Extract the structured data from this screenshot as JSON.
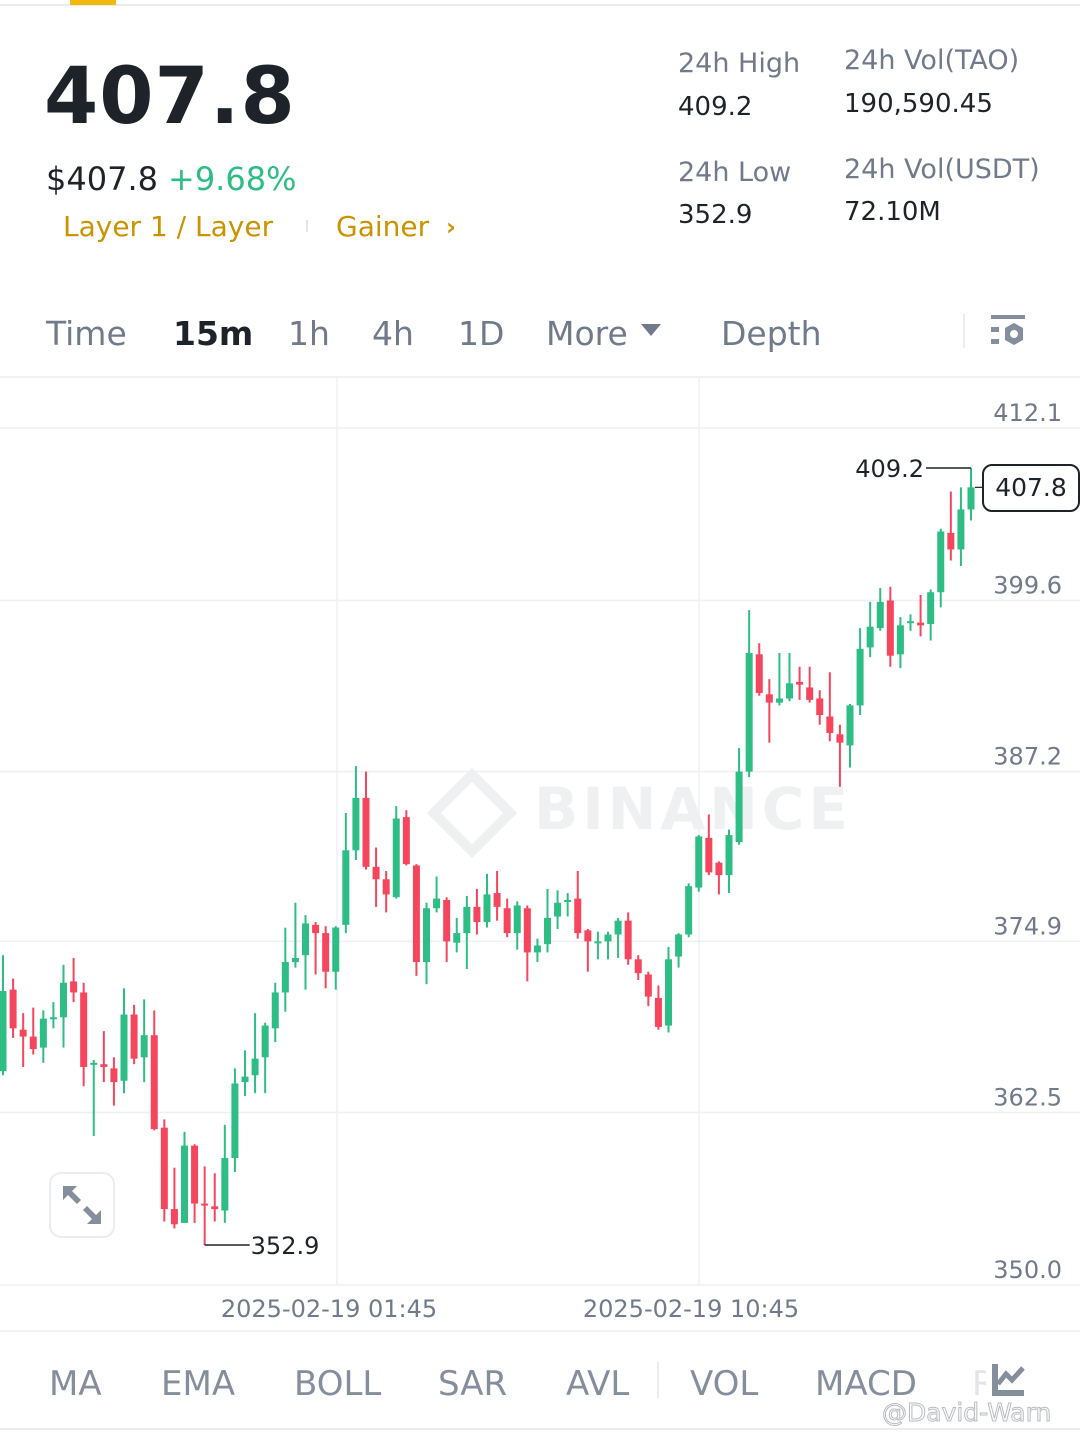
{
  "header": {
    "last_price": "407.8",
    "usd_price": "$407.8",
    "change_pct": "+9.68%",
    "tags": [
      "Layer 1 / Layer",
      "Gainer"
    ],
    "stats": [
      {
        "label": "24h High",
        "value": "409.2"
      },
      {
        "label": "24h Vol(TAO)",
        "value": "190,590.45"
      },
      {
        "label": "24h Low",
        "value": "352.9"
      },
      {
        "label": "24h Vol(USDT)",
        "value": "72.10M"
      }
    ]
  },
  "tabs": {
    "items": [
      "Time",
      "15m",
      "1h",
      "4h",
      "1D",
      "More",
      "Depth"
    ],
    "active": "15m"
  },
  "indicators": [
    "MA",
    "EMA",
    "BOLL",
    "SAR",
    "AVL",
    "VOL",
    "MACD",
    "RSI"
  ],
  "watermark": "BINANCE",
  "credit": "@David-Warn",
  "colors": {
    "up": "#2ebd85",
    "down": "#f6465d",
    "accent": "#c99400",
    "brand": "#f0b90b"
  },
  "chart_data": {
    "type": "candlestick",
    "interval": "15m",
    "ylim": [
      350.0,
      412.1
    ],
    "y_ticks": [
      "412.1",
      "399.6",
      "387.2",
      "374.9",
      "362.5",
      "350.0"
    ],
    "x_ticks": [
      "2025-02-19 01:45",
      "2025-02-19 10:45"
    ],
    "high_marker": "409.2",
    "low_marker": "352.9",
    "last_price_label": "407.8",
    "grid": true,
    "candles": [
      [
        365.5,
        373.9,
        365.2,
        371.3
      ],
      [
        371.4,
        372.2,
        367.9,
        368.6
      ],
      [
        368.5,
        369.7,
        365.8,
        368.0
      ],
      [
        368.0,
        370.1,
        366.7,
        367.1
      ],
      [
        367.2,
        369.9,
        366.1,
        369.3
      ],
      [
        369.3,
        370.5,
        368.6,
        369.4
      ],
      [
        369.4,
        373.2,
        367.2,
        371.9
      ],
      [
        372.0,
        373.7,
        370.5,
        371.2
      ],
      [
        371.2,
        371.9,
        364.4,
        365.8
      ],
      [
        366.0,
        366.3,
        360.8,
        366.1
      ],
      [
        366.0,
        368.4,
        364.7,
        365.8
      ],
      [
        365.7,
        366.5,
        363.0,
        364.7
      ],
      [
        364.8,
        371.5,
        363.9,
        369.6
      ],
      [
        369.6,
        370.3,
        366.0,
        366.4
      ],
      [
        366.5,
        370.7,
        364.7,
        368.1
      ],
      [
        368.1,
        369.9,
        361.2,
        361.3
      ],
      [
        361.4,
        362.0,
        354.6,
        355.5
      ],
      [
        355.5,
        358.5,
        354.1,
        354.4
      ],
      [
        354.5,
        361.1,
        354.5,
        360.1
      ],
      [
        360.1,
        360.2,
        354.5,
        355.9
      ],
      [
        355.9,
        358.6,
        352.9,
        355.8
      ],
      [
        355.7,
        358.1,
        354.6,
        355.5
      ],
      [
        355.4,
        361.6,
        354.5,
        359.2
      ],
      [
        359.2,
        365.7,
        358.2,
        364.6
      ],
      [
        364.7,
        367.0,
        363.7,
        365.1
      ],
      [
        365.2,
        369.7,
        363.9,
        366.4
      ],
      [
        366.5,
        369.0,
        363.9,
        368.8
      ],
      [
        368.6,
        371.9,
        367.6,
        371.2
      ],
      [
        371.2,
        375.9,
        369.8,
        373.4
      ],
      [
        373.4,
        377.7,
        373.0,
        373.7
      ],
      [
        373.9,
        376.8,
        371.4,
        376.2
      ],
      [
        376.1,
        376.3,
        372.5,
        375.5
      ],
      [
        375.5,
        376.0,
        371.5,
        372.7
      ],
      [
        372.7,
        376.0,
        371.4,
        375.9
      ],
      [
        376.1,
        384.2,
        375.5,
        381.5
      ],
      [
        381.5,
        387.6,
        380.8,
        385.3
      ],
      [
        385.3,
        387.2,
        380.1,
        380.3
      ],
      [
        380.3,
        381.7,
        377.4,
        379.4
      ],
      [
        379.4,
        380.0,
        377.0,
        378.3
      ],
      [
        378.1,
        384.7,
        378.0,
        383.8
      ],
      [
        383.9,
        384.4,
        380.4,
        380.5
      ],
      [
        380.4,
        380.5,
        372.4,
        373.4
      ],
      [
        373.4,
        377.7,
        371.8,
        377.3
      ],
      [
        377.3,
        379.6,
        377.0,
        378.0
      ],
      [
        377.9,
        378.1,
        373.4,
        374.9
      ],
      [
        374.8,
        376.6,
        374.1,
        375.5
      ],
      [
        375.5,
        378.2,
        372.9,
        377.4
      ],
      [
        377.4,
        378.7,
        375.4,
        376.3
      ],
      [
        376.3,
        379.8,
        375.9,
        378.3
      ],
      [
        378.4,
        380.0,
        376.4,
        377.4
      ],
      [
        377.3,
        378.0,
        375.2,
        375.5
      ],
      [
        375.5,
        377.8,
        374.3,
        377.5
      ],
      [
        377.3,
        377.5,
        372.0,
        374.1
      ],
      [
        374.1,
        375.1,
        373.4,
        374.6
      ],
      [
        374.7,
        378.7,
        374.1,
        376.6
      ],
      [
        376.7,
        378.6,
        375.8,
        377.7
      ],
      [
        377.8,
        378.4,
        376.7,
        377.9
      ],
      [
        378.0,
        380.0,
        375.1,
        375.5
      ],
      [
        375.7,
        375.8,
        372.7,
        374.9
      ],
      [
        374.8,
        375.6,
        373.6,
        374.9
      ],
      [
        374.9,
        375.6,
        373.6,
        375.4
      ],
      [
        375.4,
        376.6,
        373.7,
        376.4
      ],
      [
        376.4,
        377.0,
        373.2,
        373.6
      ],
      [
        373.6,
        373.9,
        372.1,
        372.6
      ],
      [
        372.5,
        372.7,
        370.2,
        370.9
      ],
      [
        370.8,
        371.7,
        368.5,
        368.7
      ],
      [
        368.8,
        374.5,
        368.3,
        373.6
      ],
      [
        373.8,
        375.5,
        373.0,
        375.4
      ],
      [
        375.4,
        379.1,
        375.2,
        378.9
      ],
      [
        378.8,
        382.6,
        378.5,
        382.5
      ],
      [
        382.4,
        384.1,
        379.7,
        379.9
      ],
      [
        380.6,
        380.7,
        378.3,
        379.7
      ],
      [
        379.7,
        383.0,
        378.4,
        382.6
      ],
      [
        382.1,
        388.9,
        381.9,
        387.2
      ],
      [
        387.2,
        398.9,
        386.8,
        395.8
      ],
      [
        395.7,
        396.5,
        392.7,
        392.9
      ],
      [
        392.8,
        393.9,
        389.3,
        392.2
      ],
      [
        392.2,
        395.8,
        392.0,
        392.5
      ],
      [
        392.5,
        395.8,
        392.3,
        393.6
      ],
      [
        393.7,
        394.8,
        392.4,
        393.5
      ],
      [
        393.3,
        394.8,
        392.2,
        392.4
      ],
      [
        392.5,
        393.1,
        390.6,
        391.3
      ],
      [
        391.2,
        394.4,
        389.4,
        390.0
      ],
      [
        389.9,
        390.6,
        386.1,
        389.3
      ],
      [
        389.1,
        392.1,
        387.5,
        392.0
      ],
      [
        392.0,
        397.6,
        391.3,
        396.1
      ],
      [
        396.2,
        399.5,
        395.5,
        397.7
      ],
      [
        397.6,
        400.5,
        397.4,
        399.5
      ],
      [
        399.6,
        400.6,
        394.8,
        395.6
      ],
      [
        395.7,
        398.4,
        394.7,
        397.8
      ],
      [
        398.0,
        398.6,
        397.4,
        398.1
      ],
      [
        398.0,
        400.0,
        397.0,
        397.8
      ],
      [
        397.9,
        400.4,
        396.7,
        400.2
      ],
      [
        400.2,
        404.8,
        399.1,
        404.6
      ],
      [
        404.5,
        407.5,
        402.5,
        403.3
      ],
      [
        403.3,
        407.8,
        402.1,
        406.2
      ],
      [
        406.2,
        409.2,
        405.4,
        407.8
      ]
    ]
  }
}
